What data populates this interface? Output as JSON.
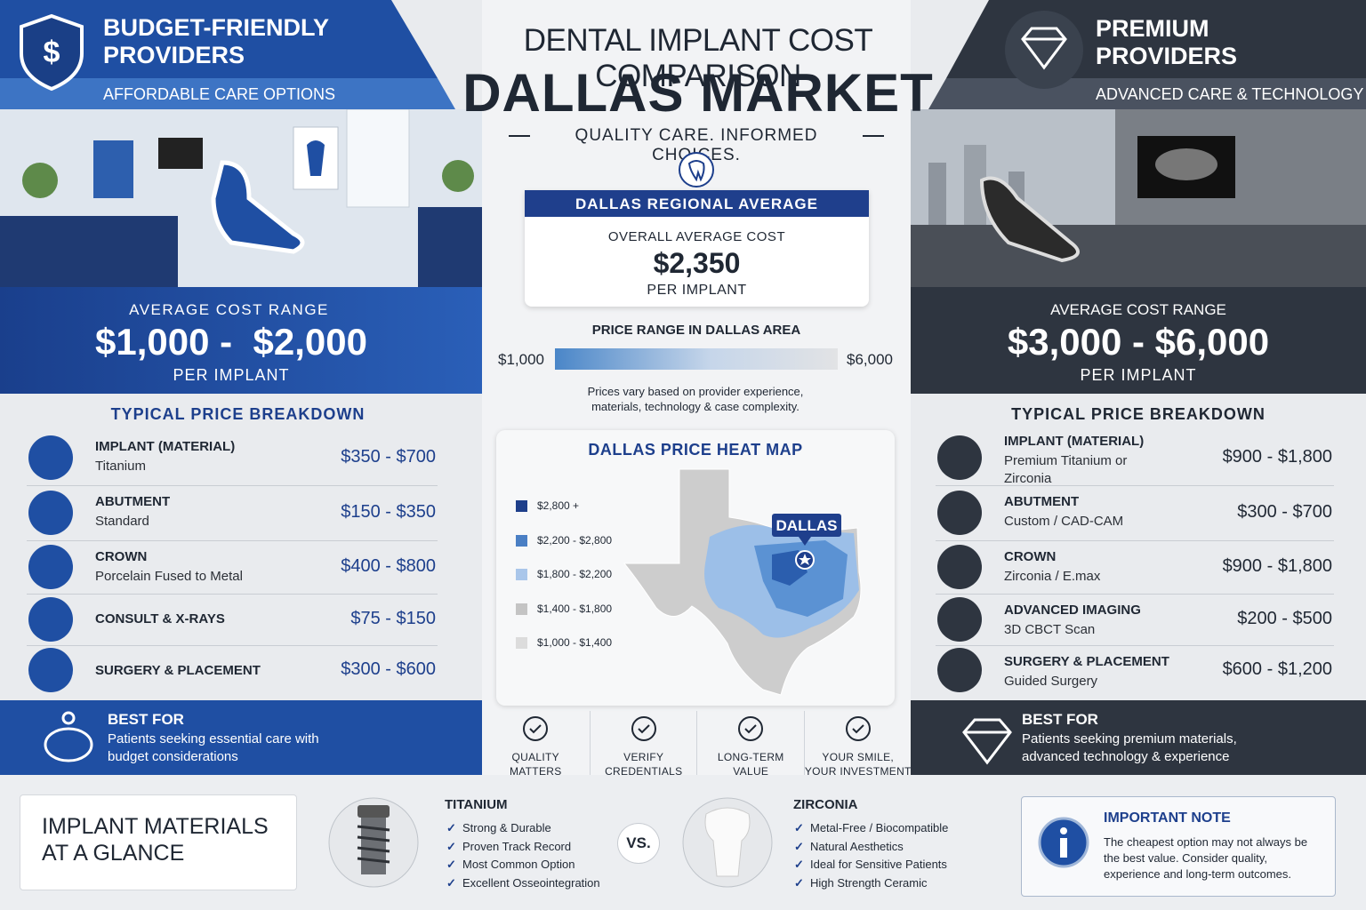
{
  "header": {
    "title": "DENTAL IMPLANT COST COMPARISON",
    "subtitle": "DALLAS MARKET",
    "tagline": "QUALITY CARE. INFORMED CHOICES."
  },
  "budget": {
    "title_lines": [
      "BUDGET-FRIENDLY",
      "PROVIDERS"
    ],
    "subtitle": "AFFORDABLE CARE OPTIONS",
    "range_label": "AVERAGE COST RANGE",
    "range": "$1,000 -  $2,000",
    "per": "PER IMPLANT",
    "breakdown_title": "TYPICAL PRICE BREAKDOWN",
    "items": [
      {
        "name": "IMPLANT (MATERIAL)",
        "detail": "Titanium",
        "price": "$350 - $700"
      },
      {
        "name": "ABUTMENT",
        "detail": "Standard",
        "price": "$150 - $350"
      },
      {
        "name": "CROWN",
        "detail": "Porcelain Fused to Metal",
        "price": "$400 - $800"
      },
      {
        "name": "CONSULT & X-RAYS",
        "price": "$75 - $150"
      },
      {
        "name": "SURGERY & PLACEMENT",
        "price": "$300 - $600"
      }
    ],
    "best_for_title": "BEST FOR",
    "best_for_text": "Patients seeking essential care with budget considerations"
  },
  "premium": {
    "title_lines": [
      "PREMIUM",
      "PROVIDERS"
    ],
    "subtitle": "ADVANCED CARE & TECHNOLOGY",
    "range_label": "AVERAGE COST RANGE",
    "range": "$3,000 - $6,000",
    "per": "PER IMPLANT",
    "breakdown_title": "TYPICAL PRICE BREAKDOWN",
    "items": [
      {
        "name": "IMPLANT (MATERIAL)",
        "detail": "Premium Titanium or Zirconia",
        "price": "$900 - $1,800"
      },
      {
        "name": "ABUTMENT",
        "detail": "Custom / CAD-CAM",
        "price": "$300 - $700"
      },
      {
        "name": "CROWN",
        "detail": "Zirconia / E.max",
        "price": "$900 - $1,800"
      },
      {
        "name": "ADVANCED IMAGING",
        "detail": "3D CBCT Scan",
        "price": "$200 - $500"
      },
      {
        "name": "SURGERY & PLACEMENT",
        "detail": "Guided Surgery",
        "price": "$600 - $1,200"
      }
    ],
    "best_for_title": "BEST FOR",
    "best_for_text": "Patients seeking premium materials, advanced technology & experience"
  },
  "center": {
    "avg_title": "DALLAS REGIONAL AVERAGE",
    "avg_label": "OVERALL AVERAGE COST",
    "avg_value": "$2,350",
    "avg_per": "PER IMPLANT",
    "range_title": "PRICE RANGE IN DALLAS AREA",
    "range_min": "$1,000",
    "range_max": "$6,000",
    "range_note": "Prices vary based on provider experience, materials, technology & case complexity.",
    "heatmap_title": "DALLAS PRICE HEAT MAP",
    "heatmap_city": "DALLAS",
    "legend": [
      {
        "label": "$2,800 +",
        "color": "#1e3f8a"
      },
      {
        "label": "$2,200 - $2,800",
        "color": "#4a7fc4"
      },
      {
        "label": "$1,800 - $2,200",
        "color": "#a9c6ea"
      },
      {
        "label": "$1,400 - $1,800",
        "color": "#c4c4c4"
      },
      {
        "label": "$1,000 - $1,400",
        "color": "#dcdcdc"
      }
    ],
    "badges": [
      [
        "QUALITY",
        "MATTERS"
      ],
      [
        "VERIFY",
        "CREDENTIALS"
      ],
      [
        "LONG-TERM",
        "VALUE"
      ],
      [
        "YOUR SMILE,",
        "YOUR INVESTMENT"
      ]
    ]
  },
  "bottom": {
    "materials_title": "IMPLANT MATERIALS AT A GLANCE",
    "titanium": {
      "name": "TITANIUM",
      "points": [
        "Strong & Durable",
        "Proven Track Record",
        "Most Common Option",
        "Excellent Osseointegration"
      ]
    },
    "vs": "VS.",
    "zirconia": {
      "name": "ZIRCONIA",
      "points": [
        "Metal-Free / Biocompatible",
        "Natural Aesthetics",
        "Ideal for Sensitive Patients",
        "High Strength Ceramic"
      ]
    },
    "note": {
      "title": "IMPORTANT NOTE",
      "text": "The cheapest option may not always be the best value. Consider quality, experience and long-term outcomes."
    }
  }
}
